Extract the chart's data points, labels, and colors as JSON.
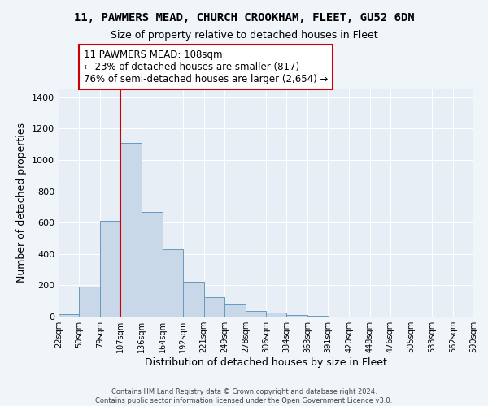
{
  "title_line1": "11, PAWMERS MEAD, CHURCH CROOKHAM, FLEET, GU52 6DN",
  "title_line2": "Size of property relative to detached houses in Fleet",
  "xlabel": "Distribution of detached houses by size in Fleet",
  "ylabel": "Number of detached properties",
  "bar_left_edges": [
    22,
    50,
    79,
    107,
    136,
    164,
    192,
    221,
    249,
    278,
    306,
    334,
    363,
    391,
    420,
    448,
    476,
    505,
    533,
    562
  ],
  "bar_widths": [
    28,
    29,
    28,
    29,
    28,
    28,
    29,
    28,
    29,
    28,
    28,
    29,
    28,
    29,
    28,
    28,
    29,
    28,
    29,
    28
  ],
  "bar_heights": [
    15,
    190,
    610,
    1110,
    670,
    430,
    225,
    125,
    80,
    35,
    25,
    10,
    5,
    2,
    2,
    1,
    1,
    0,
    0,
    0
  ],
  "bar_color": "#c8d8e8",
  "bar_edge_color": "#6699bb",
  "x_tick_labels": [
    "22sqm",
    "50sqm",
    "79sqm",
    "107sqm",
    "136sqm",
    "164sqm",
    "192sqm",
    "221sqm",
    "249sqm",
    "278sqm",
    "306sqm",
    "334sqm",
    "363sqm",
    "391sqm",
    "420sqm",
    "448sqm",
    "476sqm",
    "505sqm",
    "533sqm",
    "562sqm",
    "590sqm"
  ],
  "ylim": [
    0,
    1450
  ],
  "yticks": [
    0,
    200,
    400,
    600,
    800,
    1000,
    1200,
    1400
  ],
  "property_line_x": 107,
  "property_line_color": "#cc0000",
  "annotation_line1": "11 PAWMERS MEAD: 108sqm",
  "annotation_line2": "← 23% of detached houses are smaller (817)",
  "annotation_line3": "76% of semi-detached houses are larger (2,654) →",
  "background_color": "#f0f5fa",
  "plot_bg_color": "#e8eef5",
  "footer_line1": "Contains HM Land Registry data © Crown copyright and database right 2024.",
  "footer_line2": "Contains public sector information licensed under the Open Government Licence v3.0."
}
